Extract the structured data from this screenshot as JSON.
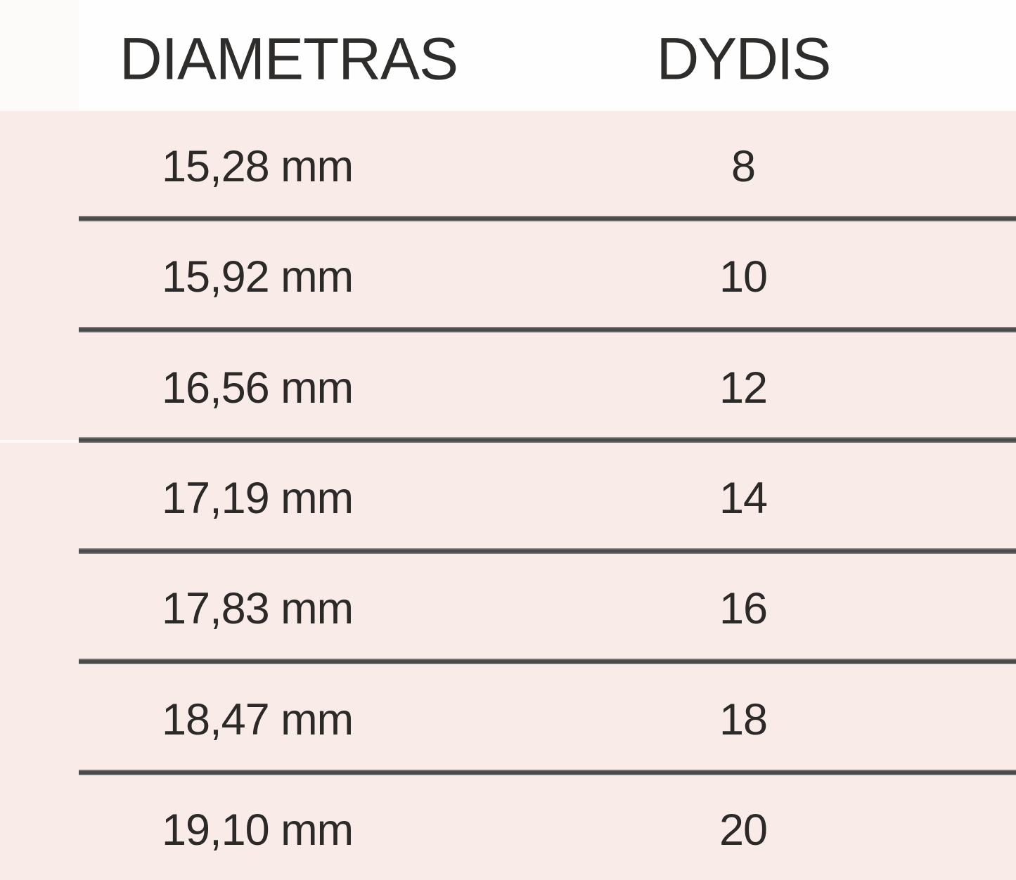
{
  "chart_data": {
    "type": "table",
    "columns": [
      {
        "key": "diameter",
        "label": "DIAMETRAS"
      },
      {
        "key": "size",
        "label": "DYDIS"
      }
    ],
    "rows": [
      {
        "diameter": "15,28 mm",
        "size": "8"
      },
      {
        "diameter": "15,92 mm",
        "size": "10"
      },
      {
        "diameter": "16,56 mm",
        "size": "12"
      },
      {
        "diameter": "17,19 mm",
        "size": "14"
      },
      {
        "diameter": "17,83 mm",
        "size": "16"
      },
      {
        "diameter": "18,47 mm",
        "size": "18"
      },
      {
        "diameter": "19,10 mm",
        "size": "20"
      }
    ],
    "layout": {
      "legend": "none",
      "grid": "horizontal-dividers"
    }
  },
  "colors": {
    "body_background": "#f9ece8",
    "header_background": "#fefefe",
    "divider": "#4c4c4c",
    "text": "#2b2a28"
  }
}
